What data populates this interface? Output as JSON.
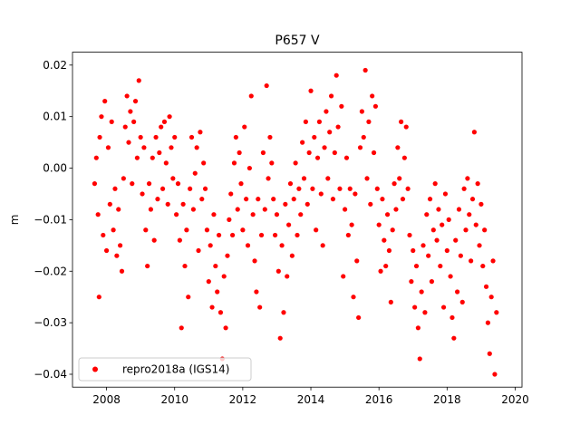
{
  "chart_data": {
    "type": "scatter",
    "title": "P657 V",
    "xlabel": "",
    "ylabel": "m",
    "xlim": [
      2007.0,
      2020.2
    ],
    "ylim": [
      -0.0425,
      0.0225
    ],
    "xticks": [
      2008,
      2010,
      2012,
      2014,
      2016,
      2018,
      2020
    ],
    "xtick_labels": [
      "2008",
      "2010",
      "2012",
      "2014",
      "2016",
      "2018",
      "2020"
    ],
    "yticks": [
      0.02,
      0.01,
      0.0,
      -0.01,
      -0.02,
      -0.03,
      -0.04
    ],
    "ytick_labels": [
      "0.02",
      "0.01",
      "0.00",
      "−0.01",
      "−0.02",
      "−0.03",
      "−0.04"
    ],
    "grid": false,
    "legend_position": "lower-left",
    "series": [
      {
        "name": "repro2018a (IGS14)",
        "color": "#ff0000",
        "marker": "circle",
        "points": [
          [
            2007.65,
            -0.003
          ],
          [
            2007.7,
            0.002
          ],
          [
            2007.75,
            -0.009
          ],
          [
            2007.78,
            -0.025
          ],
          [
            2007.8,
            0.006
          ],
          [
            2007.85,
            0.01
          ],
          [
            2007.9,
            -0.013
          ],
          [
            2007.95,
            0.013
          ],
          [
            2008.0,
            -0.016
          ],
          [
            2008.05,
            0.004
          ],
          [
            2008.1,
            -0.007
          ],
          [
            2008.15,
            0.009
          ],
          [
            2008.2,
            -0.012
          ],
          [
            2008.25,
            -0.004
          ],
          [
            2008.3,
            -0.017
          ],
          [
            2008.35,
            -0.008
          ],
          [
            2008.4,
            -0.015
          ],
          [
            2008.45,
            -0.02
          ],
          [
            2008.5,
            -0.002
          ],
          [
            2008.55,
            0.008
          ],
          [
            2008.6,
            0.014
          ],
          [
            2008.65,
            0.005
          ],
          [
            2008.7,
            0.011
          ],
          [
            2008.75,
            -0.003
          ],
          [
            2008.8,
            0.009
          ],
          [
            2008.85,
            0.013
          ],
          [
            2008.9,
            0.002
          ],
          [
            2008.95,
            0.017
          ],
          [
            2009.0,
            0.006
          ],
          [
            2009.05,
            -0.005
          ],
          [
            2009.1,
            0.004
          ],
          [
            2009.15,
            -0.012
          ],
          [
            2009.2,
            -0.019
          ],
          [
            2009.25,
            -0.003
          ],
          [
            2009.3,
            -0.008
          ],
          [
            2009.35,
            0.002
          ],
          [
            2009.4,
            -0.014
          ],
          [
            2009.45,
            0.006
          ],
          [
            2009.5,
            -0.006
          ],
          [
            2009.55,
            0.003
          ],
          [
            2009.6,
            0.008
          ],
          [
            2009.65,
            -0.004
          ],
          [
            2009.7,
            0.009
          ],
          [
            2009.75,
            0.001
          ],
          [
            2009.8,
            -0.007
          ],
          [
            2009.85,
            0.01
          ],
          [
            2009.9,
            0.004
          ],
          [
            2009.95,
            -0.002
          ],
          [
            2010.0,
            0.006
          ],
          [
            2010.05,
            -0.009
          ],
          [
            2010.1,
            -0.003
          ],
          [
            2010.15,
            -0.014
          ],
          [
            2010.2,
            -0.031
          ],
          [
            2010.25,
            -0.007
          ],
          [
            2010.3,
            -0.019
          ],
          [
            2010.35,
            -0.012
          ],
          [
            2010.4,
            -0.025
          ],
          [
            2010.45,
            -0.004
          ],
          [
            2010.5,
            0.006
          ],
          [
            2010.55,
            -0.008
          ],
          [
            2010.6,
            -0.001
          ],
          [
            2010.65,
            0.004
          ],
          [
            2010.7,
            -0.016
          ],
          [
            2010.75,
            0.007
          ],
          [
            2010.8,
            -0.006
          ],
          [
            2010.85,
            0.001
          ],
          [
            2010.9,
            -0.004
          ],
          [
            2010.95,
            -0.012
          ],
          [
            2011.0,
            -0.022
          ],
          [
            2011.05,
            -0.015
          ],
          [
            2011.1,
            -0.027
          ],
          [
            2011.15,
            -0.009
          ],
          [
            2011.2,
            -0.019
          ],
          [
            2011.25,
            -0.024
          ],
          [
            2011.3,
            -0.013
          ],
          [
            2011.35,
            -0.028
          ],
          [
            2011.4,
            -0.037
          ],
          [
            2011.45,
            -0.021
          ],
          [
            2011.5,
            -0.031
          ],
          [
            2011.55,
            -0.017
          ],
          [
            2011.6,
            -0.01
          ],
          [
            2011.65,
            -0.005
          ],
          [
            2011.7,
            -0.013
          ],
          [
            2011.75,
            0.001
          ],
          [
            2011.8,
            0.006
          ],
          [
            2011.85,
            -0.008
          ],
          [
            2011.9,
            0.003
          ],
          [
            2011.95,
            -0.003
          ],
          [
            2012.0,
            -0.012
          ],
          [
            2012.05,
            0.008
          ],
          [
            2012.1,
            -0.006
          ],
          [
            2012.15,
            -0.015
          ],
          [
            2012.2,
            0.0
          ],
          [
            2012.25,
            0.014
          ],
          [
            2012.3,
            -0.009
          ],
          [
            2012.35,
            -0.018
          ],
          [
            2012.4,
            -0.024
          ],
          [
            2012.45,
            -0.006
          ],
          [
            2012.5,
            -0.027
          ],
          [
            2012.55,
            -0.013
          ],
          [
            2012.6,
            0.003
          ],
          [
            2012.65,
            -0.008
          ],
          [
            2012.7,
            0.016
          ],
          [
            2012.75,
            -0.002
          ],
          [
            2012.8,
            0.006
          ],
          [
            2012.85,
            0.001
          ],
          [
            2012.9,
            -0.006
          ],
          [
            2012.95,
            -0.013
          ],
          [
            2013.0,
            -0.009
          ],
          [
            2013.05,
            -0.02
          ],
          [
            2013.1,
            -0.033
          ],
          [
            2013.15,
            -0.015
          ],
          [
            2013.2,
            -0.028
          ],
          [
            2013.25,
            -0.007
          ],
          [
            2013.3,
            -0.021
          ],
          [
            2013.35,
            -0.011
          ],
          [
            2013.4,
            -0.003
          ],
          [
            2013.45,
            -0.017
          ],
          [
            2013.5,
            -0.006
          ],
          [
            2013.55,
            0.001
          ],
          [
            2013.6,
            -0.013
          ],
          [
            2013.65,
            -0.004
          ],
          [
            2013.7,
            -0.009
          ],
          [
            2013.75,
            0.005
          ],
          [
            2013.8,
            -0.002
          ],
          [
            2013.85,
            0.009
          ],
          [
            2013.9,
            -0.007
          ],
          [
            2013.95,
            0.003
          ],
          [
            2014.0,
            0.015
          ],
          [
            2014.05,
            -0.004
          ],
          [
            2014.1,
            0.006
          ],
          [
            2014.15,
            -0.012
          ],
          [
            2014.2,
            0.002
          ],
          [
            2014.25,
            0.009
          ],
          [
            2014.3,
            -0.005
          ],
          [
            2014.35,
            -0.015
          ],
          [
            2014.4,
            0.004
          ],
          [
            2014.45,
            0.011
          ],
          [
            2014.5,
            -0.002
          ],
          [
            2014.55,
            0.007
          ],
          [
            2014.6,
            0.014
          ],
          [
            2014.65,
            -0.006
          ],
          [
            2014.7,
            0.003
          ],
          [
            2014.75,
            0.018
          ],
          [
            2014.8,
            0.008
          ],
          [
            2014.85,
            -0.004
          ],
          [
            2014.9,
            0.012
          ],
          [
            2014.95,
            -0.021
          ],
          [
            2015.0,
            -0.008
          ],
          [
            2015.05,
            0.002
          ],
          [
            2015.1,
            -0.013
          ],
          [
            2015.15,
            -0.004
          ],
          [
            2015.2,
            -0.011
          ],
          [
            2015.25,
            -0.025
          ],
          [
            2015.3,
            -0.005
          ],
          [
            2015.35,
            -0.018
          ],
          [
            2015.4,
            -0.029
          ],
          [
            2015.45,
            0.004
          ],
          [
            2015.5,
            0.011
          ],
          [
            2015.55,
            0.006
          ],
          [
            2015.6,
            0.019
          ],
          [
            2015.65,
            -0.002
          ],
          [
            2015.7,
            0.009
          ],
          [
            2015.75,
            -0.007
          ],
          [
            2015.8,
            0.014
          ],
          [
            2015.85,
            0.003
          ],
          [
            2015.9,
            0.012
          ],
          [
            2015.95,
            -0.004
          ],
          [
            2016.0,
            -0.011
          ],
          [
            2016.05,
            -0.02
          ],
          [
            2016.1,
            -0.006
          ],
          [
            2016.15,
            -0.014
          ],
          [
            2016.2,
            -0.019
          ],
          [
            2016.25,
            -0.009
          ],
          [
            2016.3,
            -0.016
          ],
          [
            2016.35,
            -0.026
          ],
          [
            2016.4,
            -0.012
          ],
          [
            2016.45,
            -0.003
          ],
          [
            2016.5,
            -0.008
          ],
          [
            2016.55,
            0.004
          ],
          [
            2016.6,
            -0.002
          ],
          [
            2016.65,
            0.009
          ],
          [
            2016.7,
            -0.006
          ],
          [
            2016.75,
            0.002
          ],
          [
            2016.8,
            0.008
          ],
          [
            2016.85,
            -0.004
          ],
          [
            2016.9,
            -0.013
          ],
          [
            2016.95,
            -0.022
          ],
          [
            2017.0,
            -0.016
          ],
          [
            2017.05,
            -0.027
          ],
          [
            2017.1,
            -0.019
          ],
          [
            2017.15,
            -0.031
          ],
          [
            2017.2,
            -0.037
          ],
          [
            2017.25,
            -0.024
          ],
          [
            2017.3,
            -0.015
          ],
          [
            2017.35,
            -0.028
          ],
          [
            2017.4,
            -0.009
          ],
          [
            2017.45,
            -0.017
          ],
          [
            2017.5,
            -0.006
          ],
          [
            2017.55,
            -0.022
          ],
          [
            2017.6,
            -0.012
          ],
          [
            2017.65,
            -0.003
          ],
          [
            2017.7,
            -0.014
          ],
          [
            2017.75,
            -0.008
          ],
          [
            2017.8,
            -0.019
          ],
          [
            2017.85,
            -0.011
          ],
          [
            2017.9,
            -0.027
          ],
          [
            2017.95,
            -0.005
          ],
          [
            2018.0,
            -0.016
          ],
          [
            2018.05,
            -0.01
          ],
          [
            2018.1,
            -0.021
          ],
          [
            2018.15,
            -0.029
          ],
          [
            2018.2,
            -0.033
          ],
          [
            2018.25,
            -0.014
          ],
          [
            2018.3,
            -0.024
          ],
          [
            2018.35,
            -0.008
          ],
          [
            2018.4,
            -0.017
          ],
          [
            2018.45,
            -0.026
          ],
          [
            2018.5,
            -0.004
          ],
          [
            2018.55,
            -0.012
          ],
          [
            2018.6,
            -0.002
          ],
          [
            2018.65,
            -0.009
          ],
          [
            2018.7,
            -0.018
          ],
          [
            2018.75,
            -0.006
          ],
          [
            2018.8,
            0.007
          ],
          [
            2018.85,
            -0.011
          ],
          [
            2018.9,
            -0.003
          ],
          [
            2018.95,
            -0.015
          ],
          [
            2019.0,
            -0.007
          ],
          [
            2019.05,
            -0.019
          ],
          [
            2019.1,
            -0.012
          ],
          [
            2019.15,
            -0.023
          ],
          [
            2019.2,
            -0.03
          ],
          [
            2019.25,
            -0.036
          ],
          [
            2019.3,
            -0.025
          ],
          [
            2019.35,
            -0.018
          ],
          [
            2019.4,
            -0.04
          ],
          [
            2019.45,
            -0.028
          ]
        ]
      }
    ]
  }
}
